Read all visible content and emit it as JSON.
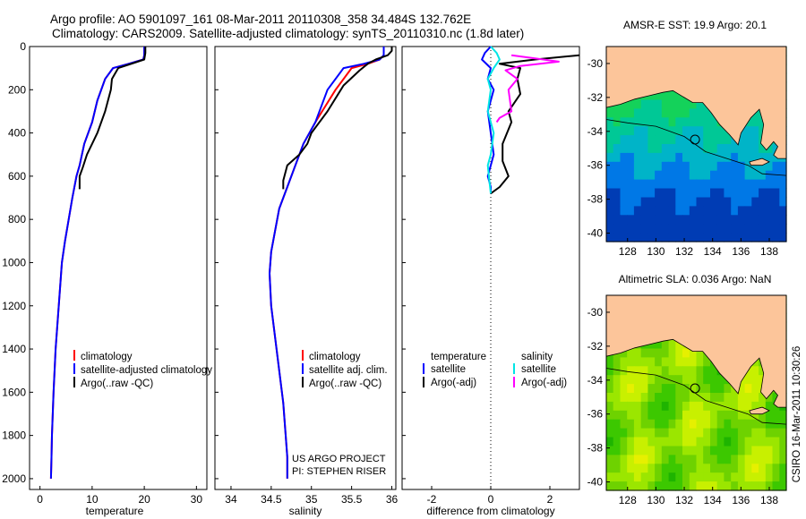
{
  "header": {
    "line1": "Argo profile: AO 5901097_161 08-Mar-2011 20110308_358 34.484S 132.762E",
    "line2": "Climatology: CARS2009. Satellite-adjusted climatology: synTS_20110310.nc (1.8d later)"
  },
  "colors": {
    "climatology": "#ff0000",
    "satellite": "#0000ff",
    "argo": "#000000",
    "sat_salinity": "#00e5e5",
    "argo_adj_salinity": "#ff00ff",
    "land": "#fcc59a"
  },
  "chart_data": [
    {
      "type": "line",
      "xlabel": "temperature",
      "xlim": [
        -2,
        32
      ],
      "ylim": [
        0,
        2050
      ],
      "y_inverted": true,
      "xticks": [
        0,
        10,
        20,
        30
      ],
      "yticks": [
        0,
        200,
        400,
        600,
        800,
        1000,
        1200,
        1400,
        1600,
        1800,
        2000
      ],
      "legend": [
        "climatology",
        "satellite-adjusted climatology",
        "Argo(..raw -QC)"
      ],
      "legend_position": "lower-right",
      "series": [
        {
          "name": "climatology",
          "color": "#ff0000",
          "x": [
            20.0,
            20.0,
            19.8,
            17.0,
            14.0,
            12.5,
            11.0,
            10.0,
            8.5,
            7.6,
            7.0,
            6.2,
            5.5,
            4.8,
            4.2,
            3.6,
            3.0,
            2.6,
            2.3,
            2.2,
            2.1
          ],
          "y": [
            0,
            40,
            60,
            80,
            100,
            150,
            250,
            350,
            450,
            550,
            600,
            700,
            800,
            900,
            1000,
            1200,
            1400,
            1600,
            1800,
            1900,
            2000
          ]
        },
        {
          "name": "satellite-adjusted climatology",
          "color": "#0000ff",
          "x": [
            20.0,
            20.0,
            19.8,
            17.0,
            14.0,
            12.5,
            11.0,
            10.0,
            8.5,
            7.6,
            7.0,
            6.2,
            5.5,
            4.8,
            4.2,
            3.6,
            3.0,
            2.6,
            2.3,
            2.2,
            2.1
          ],
          "y": [
            0,
            40,
            60,
            80,
            100,
            150,
            250,
            350,
            450,
            550,
            600,
            700,
            800,
            900,
            1000,
            1200,
            1400,
            1600,
            1800,
            1900,
            2000
          ]
        },
        {
          "name": "Argo(..raw -QC)",
          "color": "#000000",
          "x": [
            20.2,
            20.2,
            20.0,
            17.5,
            15.0,
            13.8,
            13.6,
            12.5,
            11.0,
            10.0,
            9.0,
            8.2,
            7.6,
            7.6
          ],
          "y": [
            0,
            30,
            60,
            80,
            100,
            150,
            200,
            300,
            400,
            450,
            500,
            560,
            600,
            660
          ]
        }
      ]
    },
    {
      "type": "line",
      "xlabel": "salinity",
      "xlim": [
        33.8,
        36.05
      ],
      "ylim": [
        0,
        2050
      ],
      "y_inverted": true,
      "xticks": [
        34,
        34.5,
        35,
        35.5,
        36
      ],
      "yticks": [
        0,
        200,
        400,
        600,
        800,
        1000,
        1200,
        1400,
        1600,
        1800,
        2000
      ],
      "legend": [
        "climatology",
        "satellite adj. clim.",
        "Argo(..raw -QC)"
      ],
      "legend_position": "lower-right",
      "annotation": [
        "US ARGO PROJECT",
        "PI: STEPHEN RISER"
      ],
      "series": [
        {
          "name": "climatology",
          "color": "#ff0000",
          "x": [
            35.9,
            35.9,
            35.85,
            35.7,
            35.5,
            35.3,
            35.05,
            34.9,
            34.8,
            34.7,
            34.6,
            34.55,
            34.5,
            34.48,
            34.5,
            34.55,
            34.6,
            34.65,
            34.68,
            34.7,
            34.7
          ],
          "y": [
            0,
            40,
            60,
            80,
            100,
            200,
            350,
            450,
            550,
            650,
            750,
            850,
            950,
            1050,
            1200,
            1350,
            1500,
            1650,
            1800,
            1900,
            2000
          ]
        },
        {
          "name": "satellite adj. clim.",
          "color": "#0000ff",
          "x": [
            35.9,
            35.9,
            35.85,
            35.65,
            35.4,
            35.2,
            35.05,
            34.9,
            34.8,
            34.7,
            34.6,
            34.55,
            34.5,
            34.48,
            34.5,
            34.55,
            34.6,
            34.65,
            34.68,
            34.7,
            34.7
          ],
          "y": [
            0,
            40,
            60,
            80,
            100,
            200,
            350,
            450,
            550,
            650,
            750,
            850,
            950,
            1050,
            1200,
            1350,
            1500,
            1650,
            1800,
            1900,
            2000
          ]
        },
        {
          "name": "Argo(..raw -QC)",
          "color": "#000000",
          "x": [
            36.0,
            36.0,
            35.95,
            35.8,
            35.7,
            35.6,
            35.4,
            35.2,
            35.0,
            34.95,
            34.85,
            34.7,
            34.65,
            34.65
          ],
          "y": [
            0,
            20,
            40,
            60,
            80,
            110,
            180,
            300,
            400,
            450,
            500,
            550,
            620,
            660
          ]
        }
      ]
    },
    {
      "type": "line",
      "xlabel": "difference from climatology",
      "xlim": [
        -3,
        3
      ],
      "ylim": [
        0,
        2050
      ],
      "y_inverted": true,
      "xticks": [
        -2,
        0,
        2
      ],
      "yticks": [
        0,
        200,
        400,
        600,
        800,
        1000,
        1200,
        1400,
        1600,
        1800,
        2000
      ],
      "legend_columns": [
        {
          "heading": "temperature",
          "entries": [
            "satellite",
            "Argo(-adj)"
          ]
        },
        {
          "heading": "salinity",
          "entries": [
            "satellite",
            "Argo(-adj)"
          ]
        }
      ],
      "series": [
        {
          "name": "temperature satellite",
          "color": "#0000ff",
          "x": [
            0.0,
            -0.2,
            -0.3,
            0.0,
            -0.1,
            0.1,
            -0.1,
            0.0,
            0.1,
            0.0,
            -0.1,
            0.0,
            0.0
          ],
          "y": [
            0,
            30,
            60,
            100,
            150,
            200,
            300,
            400,
            500,
            550,
            600,
            650,
            680
          ]
        },
        {
          "name": "temperature Argo(-adj)",
          "color": "#000000",
          "x": [
            3.0,
            1.5,
            0.3,
            1.0,
            0.9,
            1.0,
            0.6,
            0.7,
            0.4,
            0.4,
            0.6,
            0.3,
            0.0
          ],
          "y": [
            40,
            60,
            80,
            100,
            150,
            220,
            300,
            350,
            450,
            530,
            600,
            650,
            680
          ]
        },
        {
          "name": "salinity satellite",
          "color": "#00e5e5",
          "x": [
            0.0,
            0.2,
            0.3,
            0.1,
            -0.1,
            0.0,
            -0.1,
            0.1,
            0.0,
            -0.1,
            -0.05,
            0.0
          ],
          "y": [
            0,
            30,
            60,
            100,
            150,
            200,
            300,
            400,
            500,
            550,
            620,
            680
          ]
        },
        {
          "name": "salinity Argo(-adj)",
          "color": "#ff00ff",
          "x": [
            0.7,
            1.5,
            2.3,
            1.0,
            0.5,
            0.9,
            0.6,
            0.7,
            0.3,
            0.2
          ],
          "y": [
            40,
            55,
            70,
            90,
            110,
            150,
            200,
            300,
            330,
            350
          ]
        }
      ]
    },
    {
      "type": "heatmap",
      "title": "AMSR-E SST: 19.9 Argo: 20.1",
      "xlim": [
        126.5,
        139.2
      ],
      "ylim": [
        -40.5,
        -29
      ],
      "xticks": [
        128,
        130,
        132,
        134,
        136,
        138
      ],
      "yticks": [
        -30,
        -32,
        -34,
        -36,
        -38,
        -40
      ],
      "argo_position": {
        "lon": 132.762,
        "lat": -34.484
      },
      "palette": [
        "#003cb4",
        "#0078e6",
        "#00b4c8",
        "#00c896",
        "#14d25a",
        "#1eb43c"
      ]
    },
    {
      "type": "heatmap",
      "title": "Altimetric SLA: 0.036 Argo: NaN",
      "xlim": [
        126.5,
        139.2
      ],
      "ylim": [
        -40.5,
        -29
      ],
      "xticks": [
        128,
        130,
        132,
        134,
        136,
        138
      ],
      "yticks": [
        -30,
        -32,
        -34,
        -36,
        -38,
        -40
      ],
      "argo_position": {
        "lon": 132.762,
        "lat": -34.484
      },
      "palette": [
        "#e6f000",
        "#c8f000",
        "#9be600",
        "#6ed200",
        "#3cc800",
        "#1eb400"
      ]
    }
  ],
  "footer": {
    "side_label": "CSIRO 16-Mar-2011 10:30:26"
  }
}
